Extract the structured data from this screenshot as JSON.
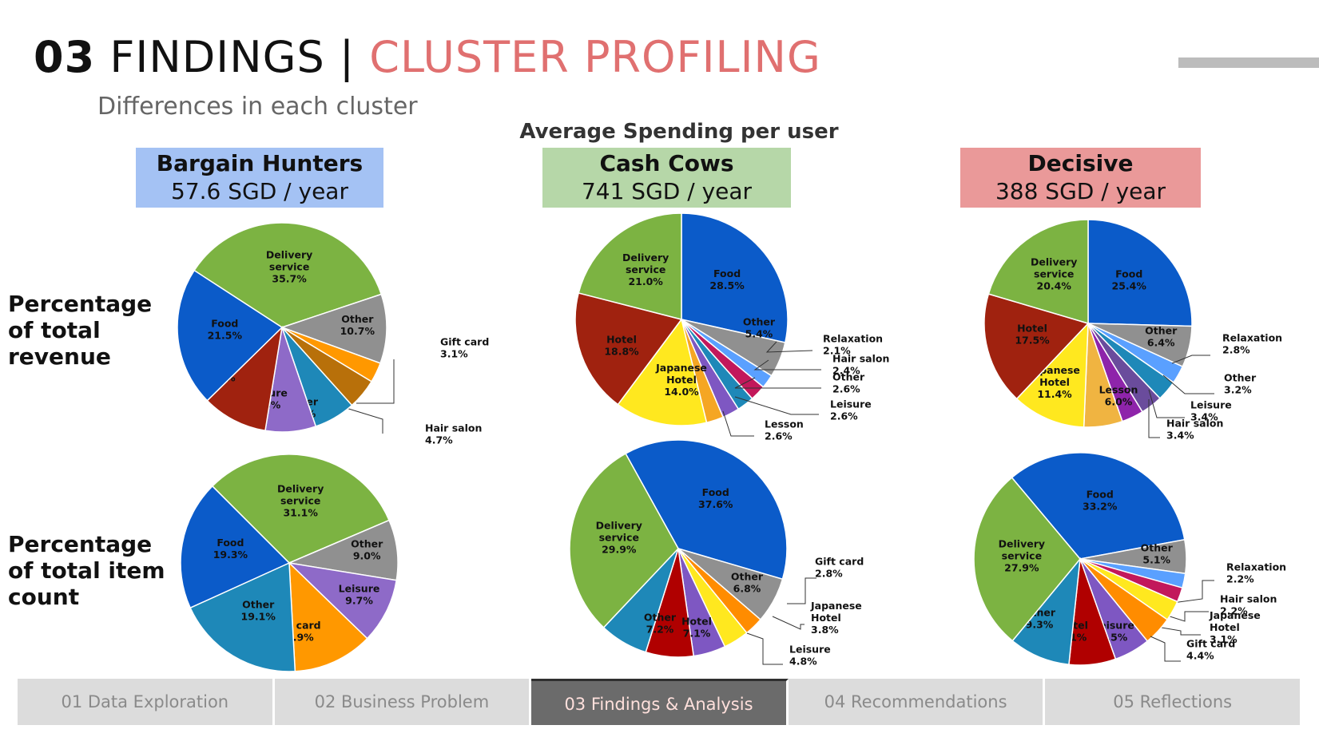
{
  "title": {
    "number": "03",
    "main": "FINDINGS",
    "separator": "|",
    "accent": "CLUSTER PROFILING"
  },
  "subtitle": "Differences in each cluster",
  "section_title": "Average Spending per user",
  "clusters": [
    {
      "name": "Bargain Hunters",
      "spend": "57.6 SGD / year",
      "color": "#a4c2f4"
    },
    {
      "name": "Cash Cows",
      "spend": "741 SGD / year",
      "color": "#b6d7a8"
    },
    {
      "name": "Decisive",
      "spend": "388 SGD / year",
      "color": "#ea9999"
    }
  ],
  "row_labels": {
    "revenue": [
      "Percentage",
      "of total",
      "revenue"
    ],
    "count": [
      "Percentage",
      "of total item",
      "count"
    ]
  },
  "nav": {
    "tabs": [
      "01 Data Exploration",
      "02 Business Problem",
      "03 Findings & Analysis",
      "04 Recommendations",
      "05 Reflections"
    ],
    "active_index": 2
  },
  "chart_data": [
    {
      "type": "pie",
      "cluster": "Bargain Hunters",
      "row": "Percentage of total revenue",
      "slices": [
        {
          "label": "Delivery service",
          "value": 35.7,
          "color": "#7cb342"
        },
        {
          "label": "Other",
          "value": 10.7,
          "color": "#909090"
        },
        {
          "label": "Gift card",
          "value": 3.1,
          "color": "#ff9800"
        },
        {
          "label": "Hair salon",
          "value": 4.7,
          "color": "#b8700a"
        },
        {
          "label": "Other",
          "value": 6.4,
          "color": "#1e88b8"
        },
        {
          "label": "Leisure",
          "value": 7.8,
          "color": "#8e6ac8"
        },
        {
          "label": "Hotel",
          "value": 10.1,
          "color": "#a0220f"
        },
        {
          "label": "Food",
          "value": 21.5,
          "color": "#0b5bc9"
        }
      ]
    },
    {
      "type": "pie",
      "cluster": "Cash Cows",
      "row": "Percentage of total revenue",
      "slices": [
        {
          "label": "Food",
          "value": 28.5,
          "color": "#0b5bc9"
        },
        {
          "label": "Other",
          "value": 5.4,
          "color": "#909090"
        },
        {
          "label": "Relaxation",
          "value": 2.1,
          "color": "#5aa0ff"
        },
        {
          "label": "Hair salon",
          "value": 2.4,
          "color": "#c2185b"
        },
        {
          "label": "Other",
          "value": 2.6,
          "color": "#1e88b8"
        },
        {
          "label": "Leisure",
          "value": 2.6,
          "color": "#7e57c2"
        },
        {
          "label": "Lesson",
          "value": 2.6,
          "color": "#f5a623"
        },
        {
          "label": "Japanese Hotel",
          "value": 14.0,
          "color": "#ffe81f"
        },
        {
          "label": "Hotel",
          "value": 18.8,
          "color": "#a0220f"
        },
        {
          "label": "Delivery service",
          "value": 21.0,
          "color": "#7cb342"
        }
      ]
    },
    {
      "type": "pie",
      "cluster": "Decisive",
      "row": "Percentage of total revenue",
      "slices": [
        {
          "label": "Food",
          "value": 25.4,
          "color": "#0b5bc9"
        },
        {
          "label": "Other",
          "value": 6.4,
          "color": "#909090"
        },
        {
          "label": "Relaxation",
          "value": 2.8,
          "color": "#5aa0ff"
        },
        {
          "label": "Other",
          "value": 3.2,
          "color": "#1e88b8"
        },
        {
          "label": "Leisure",
          "value": 3.4,
          "color": "#6a4c9c"
        },
        {
          "label": "Hair salon",
          "value": 3.4,
          "color": "#8e24aa"
        },
        {
          "label": "Lesson",
          "value": 6.0,
          "color": "#f0b441"
        },
        {
          "label": "Japanese Hotel",
          "value": 11.4,
          "color": "#ffe81f"
        },
        {
          "label": "Hotel",
          "value": 17.5,
          "color": "#a0220f"
        },
        {
          "label": "Delivery service",
          "value": 20.4,
          "color": "#7cb342"
        }
      ]
    },
    {
      "type": "pie",
      "cluster": "Bargain Hunters",
      "row": "Percentage of total item count",
      "slices": [
        {
          "label": "Delivery service",
          "value": 31.1,
          "color": "#7cb342"
        },
        {
          "label": "Other",
          "value": 9.0,
          "color": "#909090"
        },
        {
          "label": "Leisure",
          "value": 9.7,
          "color": "#8e6ac8"
        },
        {
          "label": "Gift card",
          "value": 11.9,
          "color": "#ff9800"
        },
        {
          "label": "Other",
          "value": 19.1,
          "color": "#1e88b8"
        },
        {
          "label": "Food",
          "value": 19.3,
          "color": "#0b5bc9"
        }
      ]
    },
    {
      "type": "pie",
      "cluster": "Cash Cows",
      "row": "Percentage of total item count",
      "slices": [
        {
          "label": "Food",
          "value": 37.6,
          "color": "#0b5bc9"
        },
        {
          "label": "Other",
          "value": 6.8,
          "color": "#909090"
        },
        {
          "label": "Gift card",
          "value": 2.8,
          "color": "#ff8c00"
        },
        {
          "label": "Japanese Hotel",
          "value": 3.8,
          "color": "#ffe81f"
        },
        {
          "label": "Leisure",
          "value": 4.8,
          "color": "#7e57c2"
        },
        {
          "label": "Hotel",
          "value": 7.1,
          "color": "#b00000"
        },
        {
          "label": "Other",
          "value": 7.2,
          "color": "#1e88b8"
        },
        {
          "label": "Delivery service",
          "value": 29.9,
          "color": "#7cb342"
        }
      ]
    },
    {
      "type": "pie",
      "cluster": "Decisive",
      "row": "Percentage of total item count",
      "slices": [
        {
          "label": "Food",
          "value": 33.2,
          "color": "#0b5bc9"
        },
        {
          "label": "Other",
          "value": 5.1,
          "color": "#909090"
        },
        {
          "label": "Relaxation",
          "value": 2.2,
          "color": "#5aa0ff"
        },
        {
          "label": "Hair salon",
          "value": 2.2,
          "color": "#c2185b"
        },
        {
          "label": "Japanese Hotel",
          "value": 3.1,
          "color": "#ffe81f"
        },
        {
          "label": "Gift card",
          "value": 4.4,
          "color": "#ff8c00"
        },
        {
          "label": "Leisure",
          "value": 5.5,
          "color": "#7e57c2"
        },
        {
          "label": "Hotel",
          "value": 7.1,
          "color": "#b00000"
        },
        {
          "label": "Other",
          "value": 9.3,
          "color": "#1e88b8"
        },
        {
          "label": "Delivery service",
          "value": 27.9,
          "color": "#7cb342"
        }
      ]
    }
  ]
}
